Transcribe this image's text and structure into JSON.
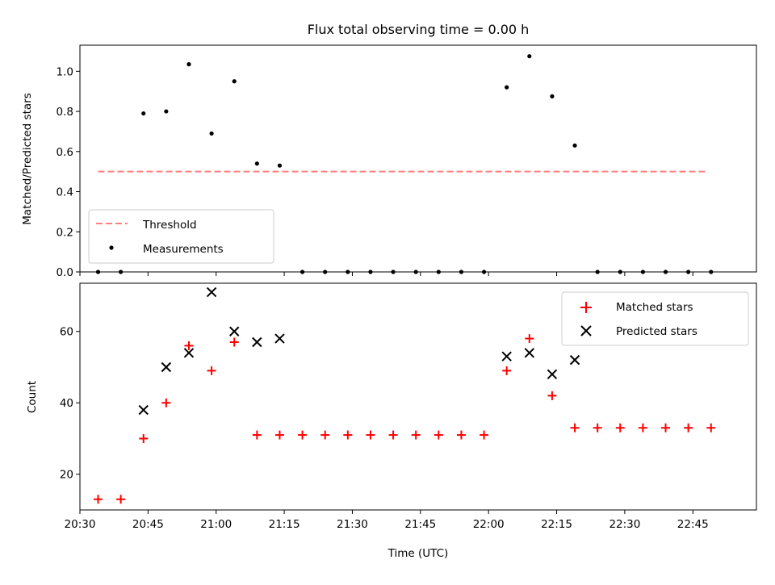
{
  "chart_data": [
    {
      "type": "scatter",
      "title": "Flux total observing time = 0.00 h",
      "xlabel": "",
      "ylabel": "Matched/Predicted stars",
      "ylim": [
        0,
        1.13
      ],
      "yticks": [
        0.0,
        0.2,
        0.4,
        0.6,
        0.8,
        1.0
      ],
      "ytick_labels": [
        "0.0",
        "0.2",
        "0.4",
        "0.6",
        "0.8",
        "1.0"
      ],
      "x_units": "minutes after 20:00 UTC",
      "threshold": {
        "name": "Threshold",
        "value": 0.5,
        "x_start": 34,
        "x_end": 168,
        "color": "#ff7f7f"
      },
      "series": [
        {
          "name": "Measurements",
          "color": "#000000",
          "x": [
            34,
            39,
            44,
            49,
            54,
            59,
            64,
            69,
            74,
            79,
            84,
            89,
            94,
            99,
            104,
            109,
            114,
            119,
            124,
            129,
            134,
            139,
            144,
            149,
            154,
            159,
            164,
            169
          ],
          "y": [
            0,
            0,
            0.79,
            0.8,
            1.035,
            0.69,
            0.95,
            0.54,
            0.53,
            0,
            0,
            0,
            0,
            0,
            0,
            0,
            0,
            0,
            0.92,
            1.075,
            0.875,
            0.63,
            0,
            0,
            0,
            0,
            0,
            0
          ]
        }
      ],
      "legend": {
        "placement": "lower-left",
        "entries": [
          "Threshold",
          "Measurements"
        ]
      }
    },
    {
      "type": "scatter",
      "title": "",
      "xlabel": "Time (UTC)",
      "ylabel": "Count",
      "ylim": [
        10,
        73.5
      ],
      "yticks": [
        20,
        40,
        60
      ],
      "ytick_labels": [
        "20",
        "40",
        "60"
      ],
      "xlim": [
        30,
        179
      ],
      "xticks": [
        30,
        45,
        60,
        75,
        90,
        105,
        120,
        135,
        150,
        165
      ],
      "xtick_labels": [
        "20:30",
        "20:45",
        "21:00",
        "21:15",
        "21:30",
        "21:45",
        "22:00",
        "22:15",
        "22:30",
        "22:45"
      ],
      "series": [
        {
          "name": "Matched stars",
          "marker": "plus",
          "color": "#ff0000",
          "x": [
            34,
            39,
            44,
            49,
            54,
            59,
            64,
            69,
            74,
            79,
            84,
            89,
            94,
            99,
            104,
            109,
            114,
            119,
            124,
            129,
            134,
            139,
            144,
            149,
            154,
            159,
            164,
            169
          ],
          "y": [
            13,
            13,
            30,
            40,
            56,
            49,
            57,
            31,
            31,
            31,
            31,
            31,
            31,
            31,
            31,
            31,
            31,
            31,
            49,
            58,
            42,
            33,
            33,
            33,
            33,
            33,
            33,
            33
          ]
        },
        {
          "name": "Predicted stars",
          "marker": "x",
          "color": "#000000",
          "x": [
            44,
            49,
            54,
            59,
            64,
            69,
            74,
            124,
            129,
            134,
            139
          ],
          "y": [
            38,
            50,
            54,
            71,
            60,
            57,
            58,
            53,
            54,
            48,
            52
          ]
        }
      ],
      "legend": {
        "placement": "upper-right",
        "entries": [
          "Matched stars",
          "Predicted stars"
        ]
      }
    }
  ]
}
